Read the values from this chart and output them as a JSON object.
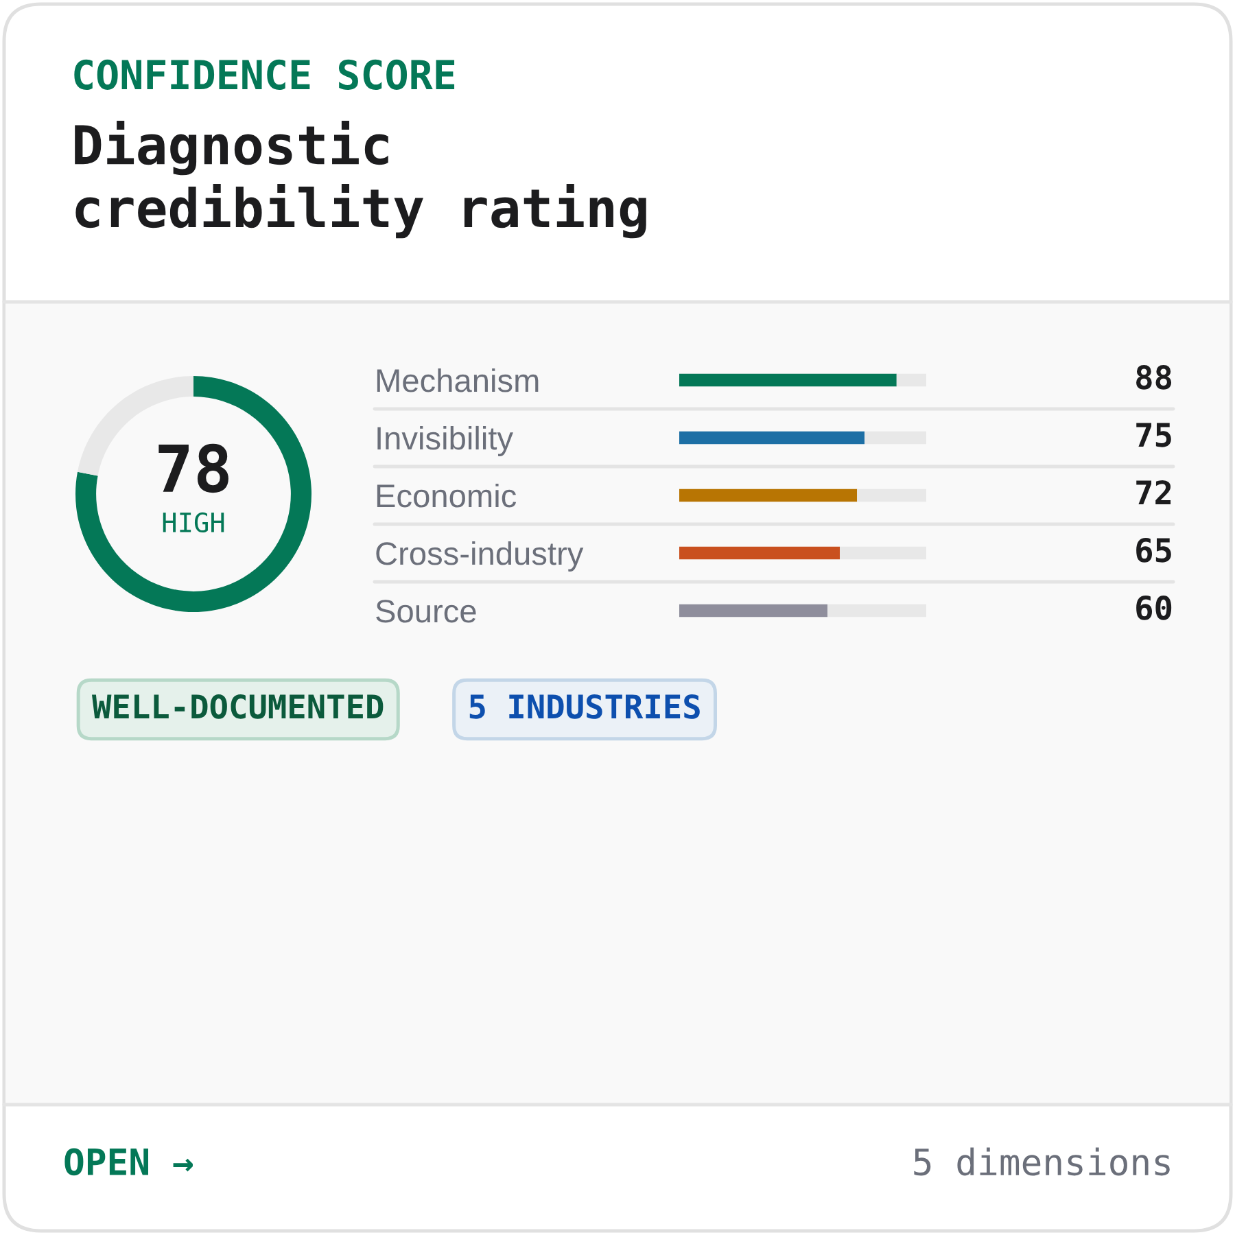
{
  "chart_data": [
    {
      "type": "donut",
      "subtitle": "CONFIDENCE SCORE",
      "title": "Diagnostic credibility rating",
      "categories": [
        null,
        null
      ],
      "values": [
        78,
        22
      ],
      "colors": [
        "#047857",
        "#e8e8e8"
      ],
      "value_labels": [
        "78",
        null
      ],
      "annotations": [
        "HIGH"
      ]
    },
    {
      "type": "bar",
      "orientation": "horizontal",
      "stacked": true,
      "categories": [
        "Mechanism",
        "Invisibility",
        "Economic",
        "Cross-industry",
        "Source"
      ],
      "series": [
        {
          "colors": [
            "#047857",
            "#1d6fa5",
            "#b87503",
            "#c9501f",
            "#8f8e9c"
          ],
          "values": [
            88,
            75,
            72,
            65,
            60
          ],
          "value_labels": [
            "88",
            "75",
            "72",
            "65",
            "60"
          ]
        },
        {
          "color": "#e8e8e8",
          "values": [
            12,
            25,
            28,
            35,
            40
          ]
        }
      ],
      "xlim": [
        0,
        100
      ],
      "tick_labels": "y"
    },
    {
      "type": "other",
      "annotations": [
        "WELL-DOCUMENTED",
        "5 INDUSTRIES",
        "OPEN →",
        "5 dimensions"
      ]
    }
  ]
}
